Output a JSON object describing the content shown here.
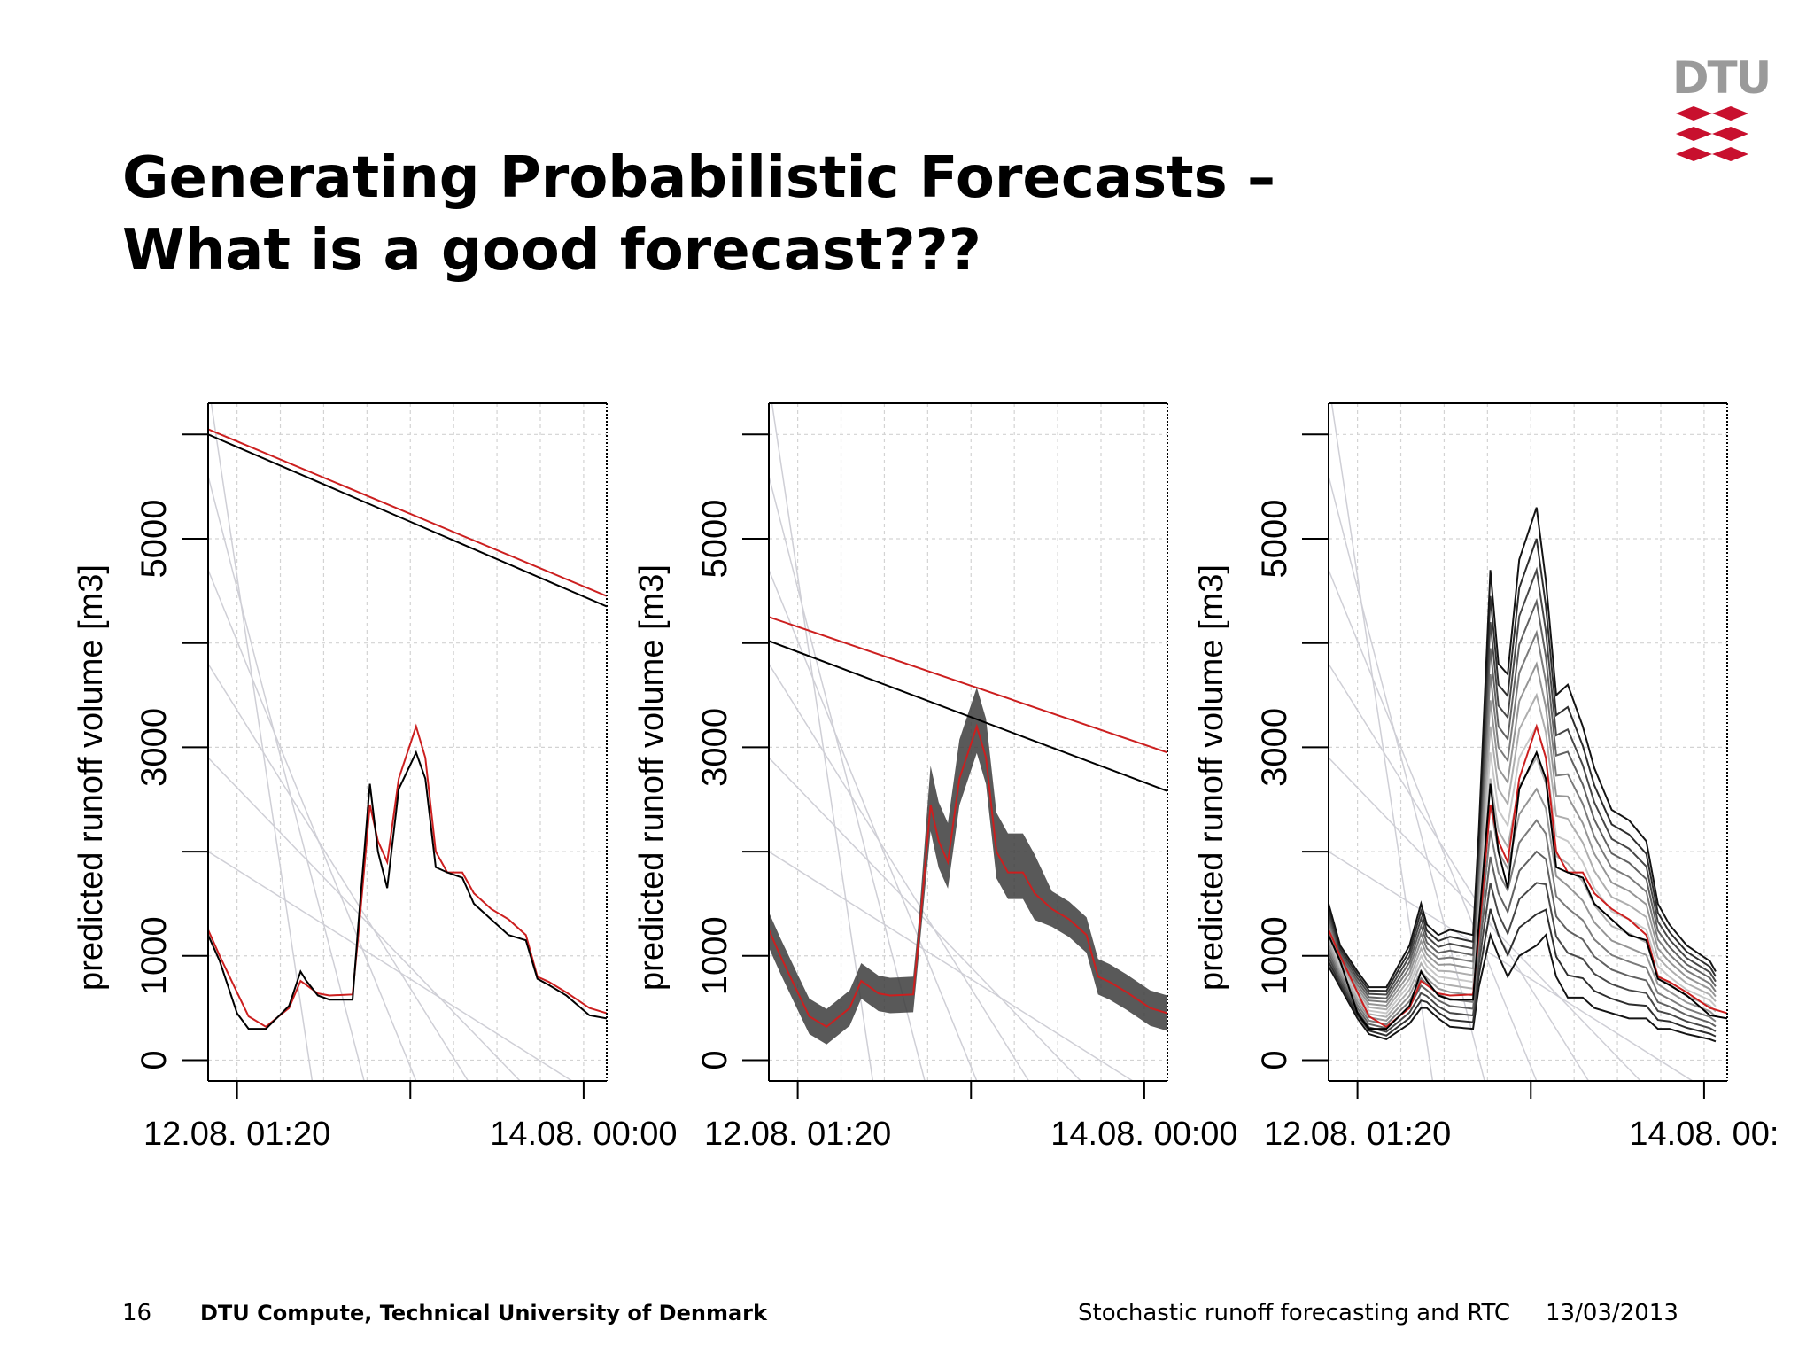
{
  "slide": {
    "title_line1": "Generating Probabilistic Forecasts –",
    "title_line2": "What is a good forecast???",
    "logo_text": "DTU",
    "footer": {
      "page_number": "16",
      "organization": "DTU Compute, Technical University of Denmark",
      "talk_title": "Stochastic runoff forecasting and RTC",
      "date": "13/03/2013"
    },
    "colors": {
      "forecast": "#cc1f1f",
      "observed": "#000000",
      "logo_red": "#c8102e",
      "grid": "#cfcfcf"
    }
  },
  "chart_data": [
    {
      "type": "line",
      "ylabel": "predicted runoff volume [m3]",
      "ylim": [
        -200,
        6300
      ],
      "yticks": [
        0,
        1000,
        2000,
        3000,
        4000,
        5000,
        6000
      ],
      "ytick_labels": [
        "0",
        "1000",
        "",
        "3000",
        "",
        "5000",
        ""
      ],
      "xlim": [
        -0.25,
        3.2
      ],
      "xticks": [
        0,
        1.5,
        3
      ],
      "xtick_labels": [
        "12.08. 01:20",
        "",
        "14.08. 00:00"
      ],
      "grid": true,
      "series": [
        {
          "role": "forecast",
          "color": "#cc1f1f",
          "x": [
            -0.25,
            -0.15,
            0,
            0.1,
            0.25,
            0.45,
            0.55,
            0.6,
            0.7,
            0.8,
            1.0,
            1.05,
            1.15,
            1.22,
            1.3,
            1.4,
            1.55,
            1.63,
            1.72,
            1.82,
            1.95,
            2.05,
            2.2,
            2.35,
            2.5,
            2.6,
            2.7,
            2.85,
            3.05,
            3.2
          ],
          "y": [
            1250,
            1000,
            650,
            420,
            320,
            500,
            760,
            720,
            640,
            620,
            630,
            1200,
            2450,
            2100,
            1900,
            2700,
            3200,
            2900,
            2000,
            1800,
            1800,
            1600,
            1450,
            1350,
            1200,
            800,
            750,
            650,
            500,
            450
          ]
        },
        {
          "role": "observed",
          "color": "#000000",
          "x": [
            -0.25,
            -0.15,
            0,
            0.1,
            0.25,
            0.45,
            0.55,
            0.6,
            0.7,
            0.8,
            1.0,
            1.05,
            1.15,
            1.22,
            1.3,
            1.4,
            1.55,
            1.63,
            1.72,
            1.82,
            1.95,
            2.05,
            2.2,
            2.35,
            2.5,
            2.6,
            2.7,
            2.85,
            3.05,
            3.2
          ],
          "y": [
            1200,
            950,
            450,
            300,
            300,
            520,
            850,
            760,
            620,
            580,
            580,
            1300,
            2650,
            2000,
            1650,
            2600,
            2950,
            2700,
            1850,
            1800,
            1750,
            1500,
            1350,
            1200,
            1150,
            780,
            720,
            620,
            430,
            400
          ]
        },
        {
          "role": "forecast-trend",
          "color": "#cc1f1f",
          "x": [
            -0.25,
            3.2
          ],
          "y": [
            6050,
            4450
          ]
        },
        {
          "role": "observed-trend",
          "color": "#000000",
          "x": [
            -0.25,
            3.2
          ],
          "y": [
            6000,
            4350
          ]
        }
      ]
    },
    {
      "type": "line",
      "ylabel": "predicted runoff volume [m3]",
      "ylim": [
        -200,
        6300
      ],
      "yticks": [
        0,
        1000,
        2000,
        3000,
        4000,
        5000,
        6000
      ],
      "ytick_labels": [
        "0",
        "1000",
        "",
        "3000",
        "",
        "5000",
        ""
      ],
      "xlim": [
        -0.25,
        3.2
      ],
      "xticks": [
        0,
        1.5,
        3
      ],
      "xtick_labels": [
        "12.08. 01:20",
        "",
        "14.08. 00:00"
      ],
      "grid": true,
      "band_half_width": 170,
      "series": [
        {
          "role": "forecast",
          "color": "#cc1f1f",
          "x": [
            -0.25,
            -0.15,
            0,
            0.1,
            0.25,
            0.45,
            0.55,
            0.6,
            0.7,
            0.8,
            1.0,
            1.05,
            1.15,
            1.22,
            1.3,
            1.4,
            1.55,
            1.63,
            1.72,
            1.82,
            1.95,
            2.05,
            2.2,
            2.35,
            2.5,
            2.6,
            2.7,
            2.85,
            3.05,
            3.2
          ],
          "y": [
            1250,
            1000,
            650,
            420,
            320,
            500,
            760,
            720,
            640,
            620,
            630,
            1200,
            2450,
            2100,
            1900,
            2700,
            3200,
            2900,
            2000,
            1800,
            1800,
            1600,
            1450,
            1350,
            1200,
            800,
            750,
            650,
            500,
            450
          ]
        },
        {
          "role": "forecast-trend",
          "color": "#cc1f1f",
          "x": [
            -0.25,
            3.2
          ],
          "y": [
            4250,
            2950
          ]
        },
        {
          "role": "observed-trend",
          "color": "#000000",
          "x": [
            -0.25,
            3.2
          ],
          "y": [
            4020,
            2580
          ]
        }
      ]
    },
    {
      "type": "line",
      "ylabel": "predicted runoff volume [m3]",
      "ylim": [
        -200,
        6300
      ],
      "yticks": [
        0,
        1000,
        2000,
        3000,
        4000,
        5000,
        6000
      ],
      "ytick_labels": [
        "0",
        "1000",
        "",
        "3000",
        "",
        "5000",
        ""
      ],
      "xlim": [
        -0.25,
        3.2
      ],
      "xticks": [
        0,
        1.5,
        3
      ],
      "xtick_labels": [
        "12.08. 01:20",
        "",
        "14.08. 00:"
      ],
      "grid": true,
      "band_upper_x": [
        -0.25,
        -0.15,
        0,
        0.1,
        0.25,
        0.45,
        0.55,
        0.6,
        0.7,
        0.8,
        1.0,
        1.05,
        1.15,
        1.22,
        1.3,
        1.4,
        1.55,
        1.63,
        1.72,
        1.82,
        1.95,
        2.05,
        2.2,
        2.35,
        2.5,
        2.6,
        2.7,
        2.85,
        3.05,
        3.1
      ],
      "band_upper_y": [
        1500,
        1100,
        850,
        700,
        700,
        1100,
        1500,
        1300,
        1200,
        1250,
        1200,
        2200,
        4700,
        3800,
        3700,
        4800,
        5300,
        4600,
        3500,
        3600,
        3200,
        2800,
        2400,
        2300,
        2100,
        1500,
        1300,
        1100,
        950,
        850
      ],
      "band_lower_x": [
        -0.25,
        -0.15,
        0,
        0.1,
        0.25,
        0.45,
        0.55,
        0.6,
        0.7,
        0.8,
        1.0,
        1.05,
        1.15,
        1.22,
        1.3,
        1.4,
        1.55,
        1.63,
        1.72,
        1.82,
        1.95,
        2.05,
        2.2,
        2.35,
        2.5,
        2.6,
        2.7,
        2.85,
        3.05,
        3.1
      ],
      "band_lower_y": [
        900,
        700,
        400,
        250,
        200,
        350,
        500,
        500,
        400,
        320,
        300,
        700,
        1200,
        1000,
        800,
        1000,
        1100,
        1200,
        800,
        600,
        600,
        500,
        450,
        400,
        400,
        300,
        300,
        250,
        200,
        180
      ],
      "series": [
        {
          "role": "forecast",
          "color": "#cc1f1f",
          "x": [
            -0.25,
            -0.15,
            0,
            0.1,
            0.25,
            0.45,
            0.55,
            0.6,
            0.7,
            0.8,
            1.0,
            1.05,
            1.15,
            1.22,
            1.3,
            1.4,
            1.55,
            1.63,
            1.72,
            1.82,
            1.95,
            2.05,
            2.2,
            2.35,
            2.5,
            2.6,
            2.7,
            2.85,
            3.05,
            3.2
          ],
          "y": [
            1250,
            1000,
            650,
            420,
            320,
            500,
            760,
            720,
            640,
            620,
            630,
            1200,
            2450,
            2100,
            1900,
            2700,
            3200,
            2900,
            2000,
            1800,
            1800,
            1600,
            1450,
            1350,
            1200,
            800,
            750,
            650,
            500,
            450
          ]
        },
        {
          "role": "observed",
          "color": "#000000",
          "x": [
            -0.25,
            -0.15,
            0,
            0.1,
            0.25,
            0.45,
            0.55,
            0.6,
            0.7,
            0.8,
            1.0,
            1.05,
            1.15,
            1.22,
            1.3,
            1.4,
            1.55,
            1.63,
            1.72,
            1.82,
            1.95,
            2.05,
            2.2,
            2.35,
            2.5,
            2.6,
            2.7,
            2.85,
            3.05,
            3.2
          ],
          "y": [
            1200,
            950,
            450,
            300,
            300,
            520,
            850,
            760,
            620,
            580,
            580,
            1300,
            2650,
            2000,
            1650,
            2600,
            2950,
            2700,
            1850,
            1800,
            1750,
            1500,
            1350,
            1200,
            1150,
            780,
            720,
            620,
            430,
            400
          ]
        }
      ]
    }
  ]
}
